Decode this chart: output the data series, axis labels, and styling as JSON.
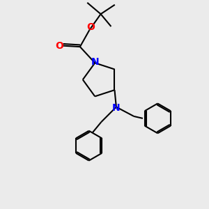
{
  "bg_color": "#ebebeb",
  "bond_color": "#000000",
  "N_color": "#0000ff",
  "O_color": "#ff0000",
  "bond_width": 1.5,
  "figsize": [
    3.0,
    3.0
  ],
  "dpi": 100,
  "xlim": [
    0,
    10
  ],
  "ylim": [
    0,
    10
  ]
}
